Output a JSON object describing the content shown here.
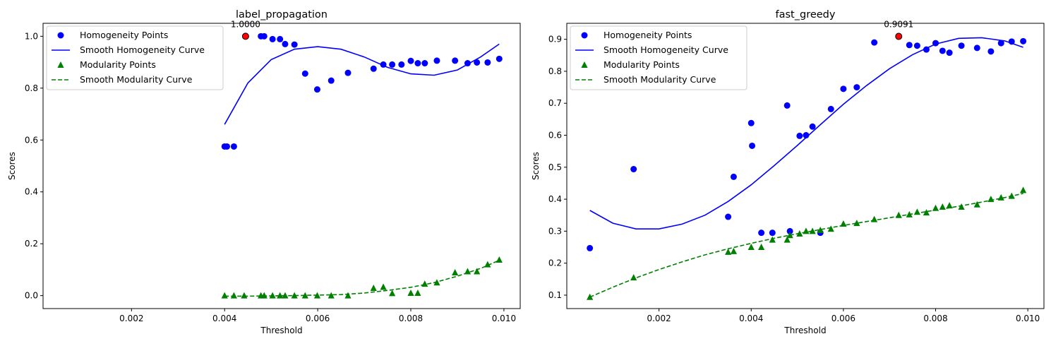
{
  "colors": {
    "homogeneity": "#0000ff",
    "modularity": "#008000",
    "highlight": "#ff0000"
  },
  "chart_data": [
    {
      "type": "scatter",
      "title": "label_propagation",
      "xlabel": "Threshold",
      "ylabel": "Scores",
      "xlim": [
        0.0001,
        0.01035
      ],
      "ylim": [
        -0.05,
        1.05
      ],
      "xticks": [
        0.002,
        0.004,
        0.006,
        0.008,
        0.01
      ],
      "xtick_labels": [
        "0.002",
        "0.004",
        "0.006",
        "0.008",
        "0.010"
      ],
      "yticks": [
        0.0,
        0.2,
        0.4,
        0.6,
        0.8,
        1.0
      ],
      "ytick_labels": [
        "0.0",
        "0.2",
        "0.4",
        "0.6",
        "0.8",
        "1.0"
      ],
      "legend_position": "top-left",
      "grid": false,
      "series": [
        {
          "name": "Homogeneity Points",
          "kind": "points",
          "marker": "circle",
          "color": "#0000ff",
          "x": [
            0.004,
            0.00405,
            0.0042,
            0.00478,
            0.00485,
            0.00503,
            0.00519,
            0.0053,
            0.0055,
            0.00573,
            0.00599,
            0.00629,
            0.00665,
            0.0072,
            0.00741,
            0.0076,
            0.0078,
            0.008,
            0.00815,
            0.0083,
            0.00856,
            0.00895,
            0.00922,
            0.00942,
            0.00965,
            0.0099
          ],
          "y": [
            0.575,
            0.575,
            0.575,
            1.0,
            1.0,
            0.989,
            0.989,
            0.97,
            0.968,
            0.856,
            0.795,
            0.829,
            0.859,
            0.875,
            0.891,
            0.891,
            0.891,
            0.905,
            0.896,
            0.896,
            0.906,
            0.906,
            0.896,
            0.899,
            0.899,
            0.913
          ]
        },
        {
          "name": "Smooth Homogeneity Curve",
          "kind": "line",
          "dash": "solid",
          "color": "#0000ff",
          "x_range": [
            0.004,
            0.0099
          ],
          "x": [
            0.004,
            0.0045,
            0.005,
            0.0055,
            0.006,
            0.0065,
            0.007,
            0.0075,
            0.008,
            0.0085,
            0.009,
            0.0095,
            0.0099
          ],
          "y": [
            0.66,
            0.82,
            0.91,
            0.95,
            0.96,
            0.95,
            0.92,
            0.88,
            0.855,
            0.85,
            0.87,
            0.92,
            0.97
          ]
        },
        {
          "name": "Modularity Points",
          "kind": "points",
          "marker": "triangle",
          "color": "#008000",
          "x": [
            0.004,
            0.0042,
            0.00442,
            0.00478,
            0.00485,
            0.00503,
            0.00519,
            0.0053,
            0.0055,
            0.00573,
            0.00599,
            0.00629,
            0.00665,
            0.0072,
            0.00741,
            0.0076,
            0.008,
            0.00815,
            0.0083,
            0.00856,
            0.00895,
            0.00922,
            0.00942,
            0.00965,
            0.0099
          ],
          "y": [
            0.0,
            0.0,
            0.0,
            0.0,
            0.0,
            0.0,
            0.0,
            0.0,
            0.0,
            0.0,
            0.0,
            0.0,
            0.0,
            0.029,
            0.033,
            0.009,
            0.01,
            0.01,
            0.045,
            0.05,
            0.089,
            0.093,
            0.093,
            0.12,
            0.138
          ]
        },
        {
          "name": "Smooth Modularity Curve",
          "kind": "line",
          "dash": "dashed",
          "color": "#008000",
          "x": [
            0.004,
            0.0045,
            0.005,
            0.0055,
            0.006,
            0.0065,
            0.007,
            0.0075,
            0.008,
            0.0085,
            0.009,
            0.0095,
            0.0099
          ],
          "y": [
            -0.002,
            -0.002,
            -0.001,
            0.0,
            0.002,
            0.004,
            0.01,
            0.02,
            0.032,
            0.05,
            0.075,
            0.105,
            0.136
          ]
        }
      ],
      "highlight": {
        "x": 0.00445,
        "y": 1.0,
        "label": "1.0000"
      }
    },
    {
      "type": "scatter",
      "title": "fast_greedy",
      "xlabel": "Threshold",
      "ylabel": "Scores",
      "xlim": [
        0.0,
        0.01035
      ],
      "ylim": [
        0.058,
        0.95
      ],
      "xticks": [
        0.002,
        0.004,
        0.006,
        0.008,
        0.01
      ],
      "xtick_labels": [
        "0.002",
        "0.004",
        "0.006",
        "0.008",
        "0.010"
      ],
      "yticks": [
        0.1,
        0.2,
        0.3,
        0.4,
        0.5,
        0.6,
        0.7,
        0.8,
        0.9
      ],
      "ytick_labels": [
        "0.1",
        "0.2",
        "0.3",
        "0.4",
        "0.5",
        "0.6",
        "0.7",
        "0.8",
        "0.9"
      ],
      "legend_position": "top-left",
      "grid": false,
      "series": [
        {
          "name": "Homogeneity Points",
          "kind": "points",
          "marker": "circle",
          "color": "#0000ff",
          "x": [
            0.0005,
            0.00145,
            0.0035,
            0.00362,
            0.004,
            0.00402,
            0.00422,
            0.00446,
            0.00478,
            0.00484,
            0.00505,
            0.00519,
            0.00533,
            0.0055,
            0.00573,
            0.006,
            0.00629,
            0.00667,
            0.00743,
            0.0076,
            0.0078,
            0.008,
            0.00815,
            0.0083,
            0.00856,
            0.0089,
            0.0092,
            0.00942,
            0.00965,
            0.0099
          ],
          "y": [
            0.247,
            0.494,
            0.345,
            0.47,
            0.638,
            0.567,
            0.295,
            0.295,
            0.693,
            0.3,
            0.598,
            0.6,
            0.627,
            0.295,
            0.682,
            0.745,
            0.75,
            0.89,
            0.882,
            0.88,
            0.868,
            0.888,
            0.864,
            0.858,
            0.88,
            0.873,
            0.862,
            0.888,
            0.893,
            0.894
          ]
        },
        {
          "name": "Smooth Homogeneity Curve",
          "kind": "line",
          "dash": "solid",
          "color": "#0000ff",
          "x": [
            0.0005,
            0.001,
            0.0015,
            0.002,
            0.0025,
            0.003,
            0.0035,
            0.004,
            0.0045,
            0.005,
            0.0055,
            0.006,
            0.0065,
            0.007,
            0.0075,
            0.008,
            0.0085,
            0.009,
            0.0095,
            0.0099
          ],
          "y": [
            0.365,
            0.325,
            0.307,
            0.307,
            0.322,
            0.35,
            0.393,
            0.445,
            0.505,
            0.568,
            0.633,
            0.697,
            0.755,
            0.808,
            0.852,
            0.885,
            0.903,
            0.905,
            0.895,
            0.875
          ]
        },
        {
          "name": "Modularity Points",
          "kind": "points",
          "marker": "triangle",
          "color": "#008000",
          "x": [
            0.0005,
            0.00145,
            0.0035,
            0.00362,
            0.004,
            0.00422,
            0.00446,
            0.00478,
            0.00484,
            0.00505,
            0.00519,
            0.00533,
            0.0055,
            0.00573,
            0.006,
            0.00629,
            0.00667,
            0.0072,
            0.00743,
            0.0076,
            0.0078,
            0.008,
            0.00815,
            0.0083,
            0.00856,
            0.0089,
            0.0092,
            0.00942,
            0.00965,
            0.0099
          ],
          "y": [
            0.094,
            0.155,
            0.235,
            0.237,
            0.25,
            0.25,
            0.273,
            0.273,
            0.287,
            0.292,
            0.3,
            0.3,
            0.303,
            0.307,
            0.323,
            0.325,
            0.337,
            0.35,
            0.352,
            0.36,
            0.358,
            0.372,
            0.376,
            0.38,
            0.376,
            0.383,
            0.4,
            0.405,
            0.41,
            0.428
          ]
        },
        {
          "name": "Smooth Modularity Curve",
          "kind": "line",
          "dash": "dashed",
          "color": "#008000",
          "x": [
            0.0005,
            0.001,
            0.0015,
            0.002,
            0.0025,
            0.003,
            0.0035,
            0.004,
            0.0045,
            0.005,
            0.0055,
            0.006,
            0.0065,
            0.007,
            0.0075,
            0.008,
            0.0085,
            0.009,
            0.0095,
            0.0099
          ],
          "y": [
            0.094,
            0.125,
            0.154,
            0.18,
            0.204,
            0.226,
            0.245,
            0.262,
            0.278,
            0.292,
            0.305,
            0.318,
            0.33,
            0.342,
            0.354,
            0.366,
            0.378,
            0.391,
            0.405,
            0.418
          ]
        }
      ],
      "highlight": {
        "x": 0.0072,
        "y": 0.9091,
        "label": "0.9091"
      }
    }
  ]
}
